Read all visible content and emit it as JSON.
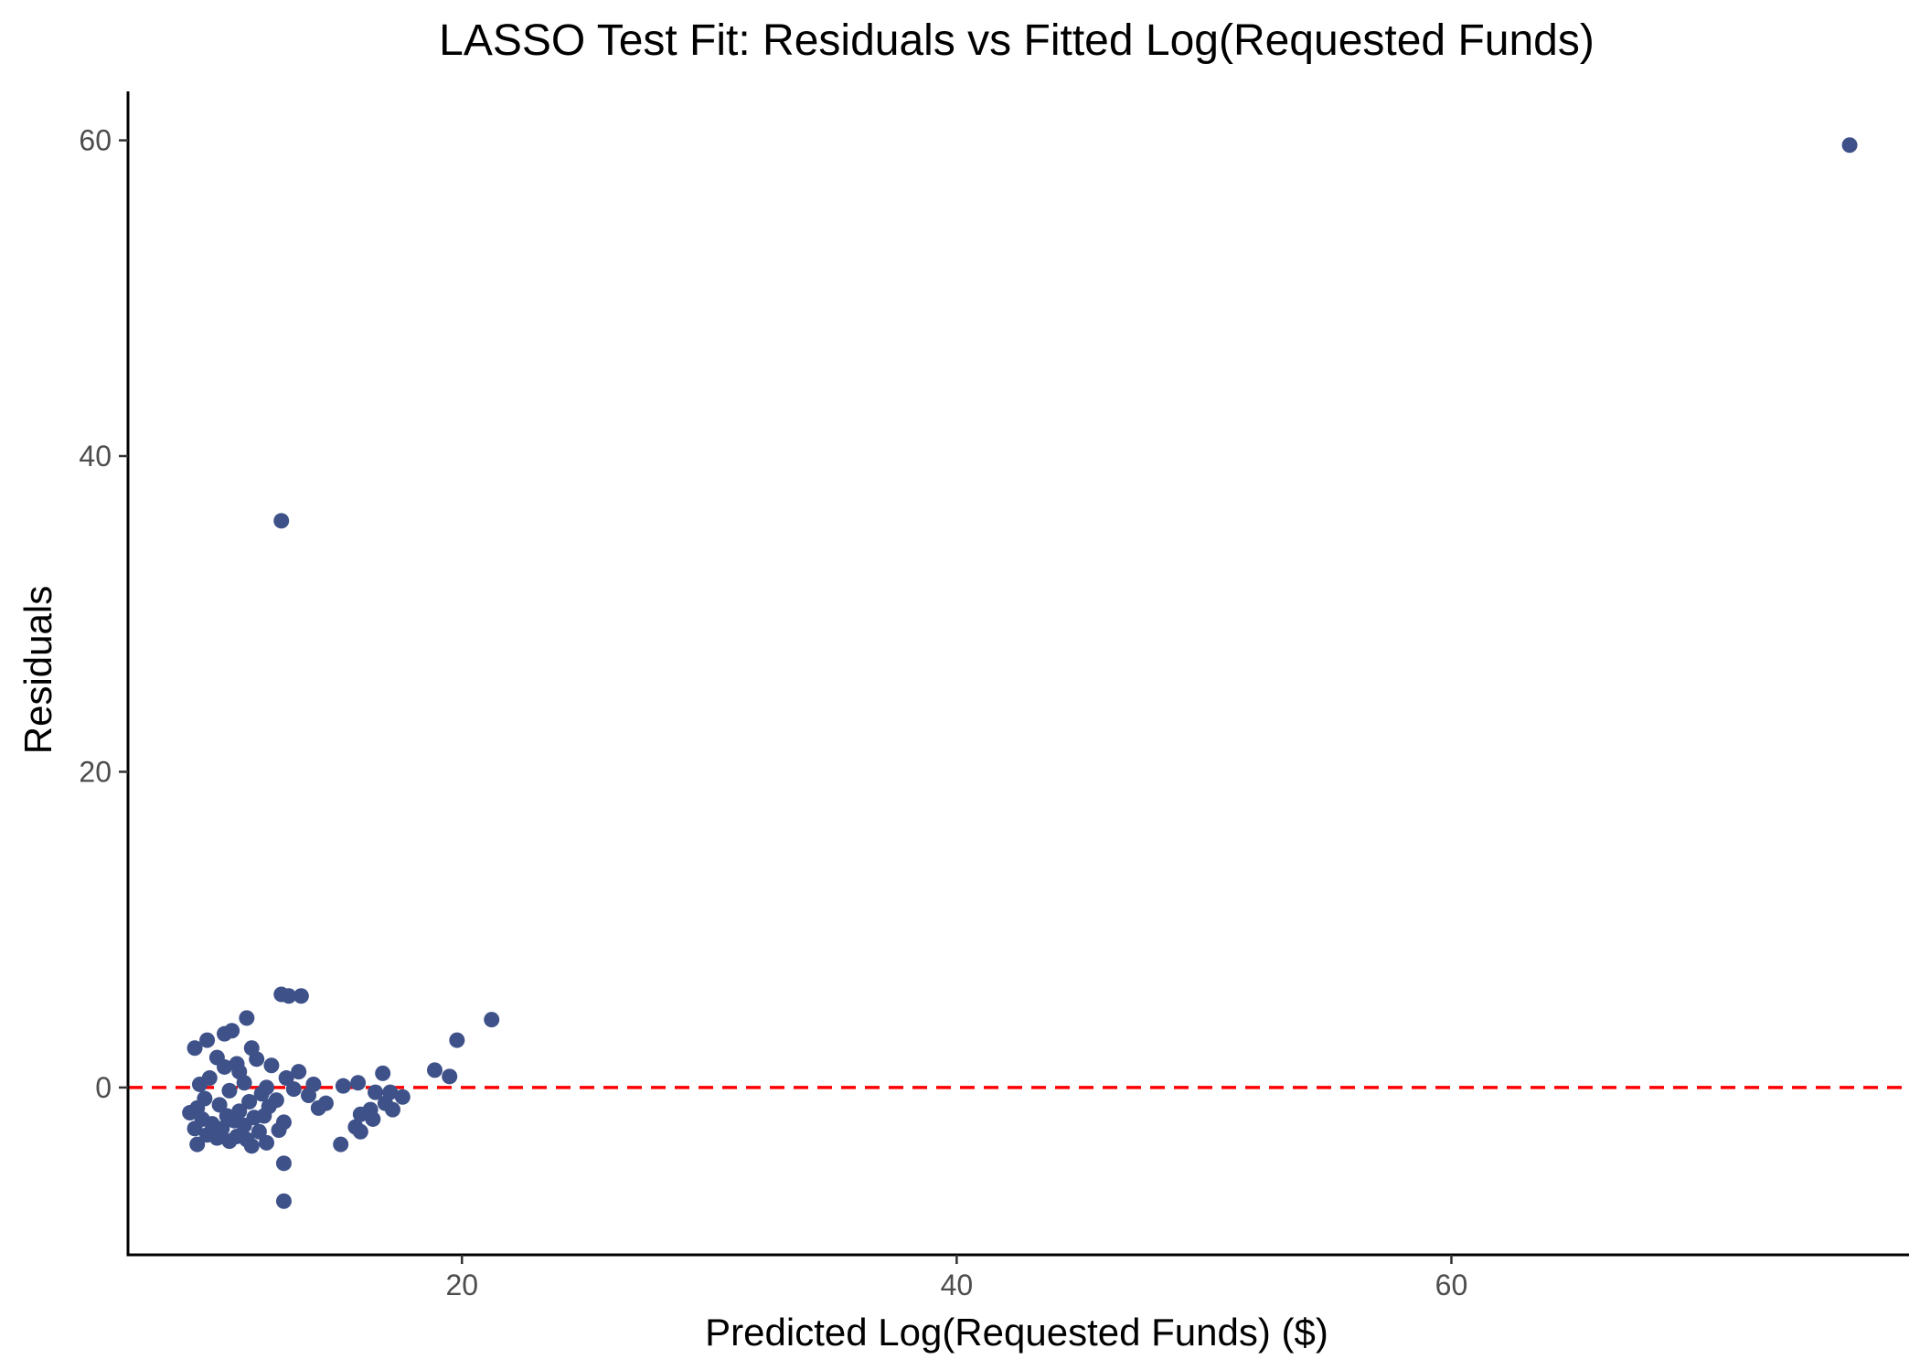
{
  "chart_data": {
    "type": "scatter",
    "title": "LASSO Test Fit: Residuals vs Fitted Log(Requested Funds)",
    "xlabel": "Predicted Log(Requested Funds) ($)",
    "ylabel": "Residuals",
    "xlim": [
      6.5,
      78.5
    ],
    "ylim": [
      -10.6,
      63.1
    ],
    "x_ticks": [
      20,
      40,
      60
    ],
    "y_ticks": [
      0,
      20,
      40,
      60
    ],
    "grid": false,
    "legend": "none",
    "point_color": "#3e5189",
    "reference_line": {
      "y": 0,
      "style": "dashed",
      "color": "#ff0000"
    },
    "points": [
      {
        "x": 76.1,
        "y": 59.7
      },
      {
        "x": 12.7,
        "y": 35.9
      },
      {
        "x": 12.7,
        "y": 5.9
      },
      {
        "x": 13.0,
        "y": 5.8
      },
      {
        "x": 13.5,
        "y": 5.8
      },
      {
        "x": 21.2,
        "y": 4.3
      },
      {
        "x": 19.8,
        "y": 3.0
      },
      {
        "x": 11.3,
        "y": 4.4
      },
      {
        "x": 10.7,
        "y": 3.6
      },
      {
        "x": 10.4,
        "y": 3.4
      },
      {
        "x": 9.7,
        "y": 3.0
      },
      {
        "x": 9.2,
        "y": 2.5
      },
      {
        "x": 11.5,
        "y": 2.5
      },
      {
        "x": 10.1,
        "y": 1.9
      },
      {
        "x": 11.7,
        "y": 1.8
      },
      {
        "x": 10.9,
        "y": 1.5
      },
      {
        "x": 12.3,
        "y": 1.4
      },
      {
        "x": 10.4,
        "y": 1.3
      },
      {
        "x": 11.0,
        "y": 1.0
      },
      {
        "x": 13.4,
        "y": 1.0
      },
      {
        "x": 18.9,
        "y": 1.1
      },
      {
        "x": 19.5,
        "y": 0.7
      },
      {
        "x": 16.8,
        "y": 0.9
      },
      {
        "x": 12.9,
        "y": 0.6
      },
      {
        "x": 9.8,
        "y": 0.6
      },
      {
        "x": 11.2,
        "y": 0.3
      },
      {
        "x": 14.0,
        "y": 0.2
      },
      {
        "x": 15.8,
        "y": 0.3
      },
      {
        "x": 15.2,
        "y": 0.1
      },
      {
        "x": 9.4,
        "y": 0.2
      },
      {
        "x": 12.1,
        "y": 0.0
      },
      {
        "x": 13.2,
        "y": -0.1
      },
      {
        "x": 10.6,
        "y": -0.2
      },
      {
        "x": 16.5,
        "y": -0.3
      },
      {
        "x": 17.1,
        "y": -0.3
      },
      {
        "x": 11.9,
        "y": -0.4
      },
      {
        "x": 13.8,
        "y": -0.5
      },
      {
        "x": 17.6,
        "y": -0.6
      },
      {
        "x": 9.6,
        "y": -0.7
      },
      {
        "x": 12.5,
        "y": -0.8
      },
      {
        "x": 11.4,
        "y": -0.9
      },
      {
        "x": 16.9,
        "y": -1.0
      },
      {
        "x": 14.5,
        "y": -1.0
      },
      {
        "x": 10.2,
        "y": -1.1
      },
      {
        "x": 12.2,
        "y": -1.2
      },
      {
        "x": 14.2,
        "y": -1.3
      },
      {
        "x": 9.3,
        "y": -1.3
      },
      {
        "x": 16.3,
        "y": -1.4
      },
      {
        "x": 17.2,
        "y": -1.4
      },
      {
        "x": 11.0,
        "y": -1.5
      },
      {
        "x": 9.0,
        "y": -1.6
      },
      {
        "x": 15.9,
        "y": -1.7
      },
      {
        "x": 10.5,
        "y": -1.8
      },
      {
        "x": 12.0,
        "y": -1.8
      },
      {
        "x": 11.6,
        "y": -1.9
      },
      {
        "x": 9.5,
        "y": -2.0
      },
      {
        "x": 10.8,
        "y": -2.1
      },
      {
        "x": 16.4,
        "y": -2.0
      },
      {
        "x": 12.8,
        "y": -2.2
      },
      {
        "x": 9.9,
        "y": -2.3
      },
      {
        "x": 11.2,
        "y": -2.4
      },
      {
        "x": 15.7,
        "y": -2.5
      },
      {
        "x": 9.2,
        "y": -2.6
      },
      {
        "x": 10.3,
        "y": -2.6
      },
      {
        "x": 12.6,
        "y": -2.7
      },
      {
        "x": 11.8,
        "y": -2.8
      },
      {
        "x": 15.9,
        "y": -2.8
      },
      {
        "x": 9.7,
        "y": -3.0
      },
      {
        "x": 10.9,
        "y": -3.1
      },
      {
        "x": 10.1,
        "y": -3.2
      },
      {
        "x": 11.3,
        "y": -3.3
      },
      {
        "x": 10.6,
        "y": -3.4
      },
      {
        "x": 12.1,
        "y": -3.5
      },
      {
        "x": 9.3,
        "y": -3.6
      },
      {
        "x": 15.1,
        "y": -3.6
      },
      {
        "x": 11.5,
        "y": -3.7
      },
      {
        "x": 12.8,
        "y": -4.8
      },
      {
        "x": 12.8,
        "y": -7.2
      }
    ]
  }
}
